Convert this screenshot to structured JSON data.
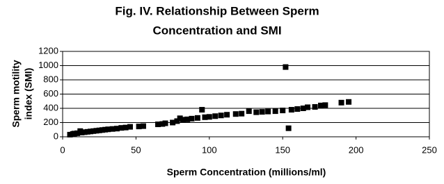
{
  "chart_data": {
    "type": "scatter",
    "title": [
      "Fig. IV. Relationship Between Sperm",
      "Concentration and SMI"
    ],
    "x_label": "Sperm Concentration (millions/ml)",
    "y_label": [
      "Sperm motility",
      "index (SMI)"
    ],
    "x": [
      5,
      7,
      8,
      10,
      12,
      13,
      15,
      17,
      19,
      21,
      23,
      25,
      27,
      29,
      31,
      34,
      37,
      40,
      43,
      46,
      52,
      55,
      65,
      68,
      70,
      75,
      78,
      80,
      82,
      85,
      88,
      92,
      95,
      97,
      100,
      104,
      108,
      112,
      118,
      122,
      127,
      132,
      136,
      140,
      145,
      150,
      152,
      154,
      156,
      160,
      164,
      167,
      172,
      176,
      179,
      190,
      195
    ],
    "values": [
      30,
      40,
      45,
      50,
      80,
      60,
      65,
      70,
      75,
      80,
      85,
      90,
      95,
      100,
      105,
      110,
      115,
      125,
      130,
      140,
      145,
      150,
      175,
      180,
      190,
      200,
      220,
      260,
      240,
      245,
      255,
      265,
      380,
      275,
      280,
      290,
      300,
      310,
      320,
      325,
      360,
      345,
      350,
      355,
      360,
      370,
      980,
      120,
      380,
      390,
      400,
      415,
      420,
      440,
      445,
      480,
      490
    ],
    "color": "#000000",
    "xlim": [
      0,
      250
    ],
    "xticks": [
      0,
      50,
      100,
      150,
      200,
      250
    ],
    "ylim": [
      0,
      1200
    ],
    "yticks": [
      0,
      200,
      400,
      600,
      800,
      1000,
      1200
    ],
    "grid": true
  }
}
